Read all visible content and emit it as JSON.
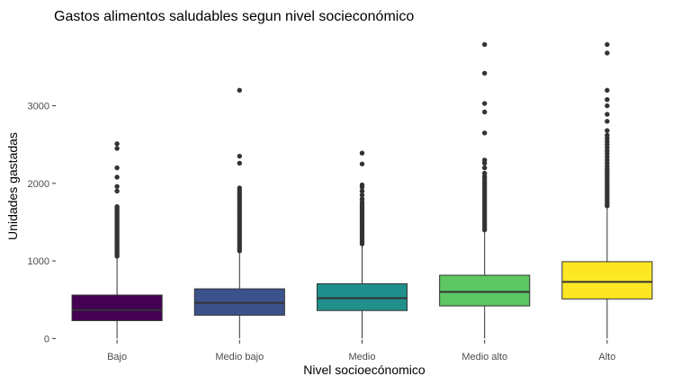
{
  "chart_data": {
    "type": "boxplot",
    "title": "Gastos alimentos saludables segun nivel socieconómico",
    "xlabel": "Nivel socioecónomico",
    "ylabel": "Unidades gastadas",
    "ylim": [
      -20,
      3900
    ],
    "yticks": [
      0,
      1000,
      2000,
      3000
    ],
    "ytick_labels": [
      "0",
      "1000",
      "2000",
      "3000"
    ],
    "grid": false,
    "legend": "none",
    "categories": [
      "Bajo",
      "Medio bajo",
      "Medio",
      "Medio alto",
      "Alto"
    ],
    "series": [
      {
        "category": "Bajo",
        "color": "#440154",
        "min": 0,
        "q1": 230,
        "median": 365,
        "q3": 560,
        "max": 1050,
        "outliers": [
          1060,
          1080,
          1100,
          1120,
          1140,
          1160,
          1180,
          1200,
          1220,
          1240,
          1260,
          1280,
          1300,
          1320,
          1340,
          1360,
          1380,
          1400,
          1420,
          1440,
          1460,
          1480,
          1500,
          1520,
          1540,
          1560,
          1580,
          1600,
          1620,
          1640,
          1660,
          1680,
          1700,
          1900,
          1960,
          2080,
          2200,
          2450,
          2510
        ]
      },
      {
        "category": "Medio bajo",
        "color": "#3b528b",
        "min": 0,
        "q1": 300,
        "median": 460,
        "q3": 640,
        "max": 1120,
        "outliers": [
          1130,
          1160,
          1190,
          1220,
          1250,
          1280,
          1310,
          1340,
          1370,
          1400,
          1430,
          1460,
          1490,
          1520,
          1550,
          1580,
          1610,
          1640,
          1670,
          1700,
          1730,
          1760,
          1790,
          1820,
          1850,
          1880,
          1910,
          1940,
          2260,
          2350,
          3200
        ]
      },
      {
        "category": "Medio",
        "color": "#21908c",
        "min": 0,
        "q1": 360,
        "median": 520,
        "q3": 705,
        "max": 1210,
        "outliers": [
          1220,
          1250,
          1280,
          1310,
          1340,
          1370,
          1400,
          1430,
          1460,
          1490,
          1520,
          1550,
          1580,
          1610,
          1640,
          1670,
          1700,
          1730,
          1760,
          1800,
          1850,
          1900,
          1950,
          1980,
          2250,
          2390
        ]
      },
      {
        "category": "Medio alto",
        "color": "#5dc863",
        "min": 0,
        "q1": 420,
        "median": 600,
        "q3": 815,
        "max": 1390,
        "outliers": [
          1400,
          1430,
          1460,
          1490,
          1520,
          1550,
          1580,
          1610,
          1640,
          1670,
          1700,
          1730,
          1760,
          1790,
          1820,
          1850,
          1880,
          1910,
          1940,
          1970,
          2000,
          2030,
          2060,
          2090,
          2130,
          2200,
          2260,
          2300,
          2650,
          2920,
          3030,
          3420,
          3790
        ]
      },
      {
        "category": "Alto",
        "color": "#fde725",
        "min": 0,
        "q1": 510,
        "median": 730,
        "q3": 990,
        "max": 1700,
        "outliers": [
          1710,
          1740,
          1770,
          1800,
          1830,
          1860,
          1890,
          1920,
          1950,
          1980,
          2010,
          2040,
          2070,
          2100,
          2130,
          2160,
          2190,
          2220,
          2260,
          2300,
          2340,
          2380,
          2420,
          2460,
          2500,
          2540,
          2580,
          2620,
          2680,
          2800,
          2890,
          3000,
          3080,
          3200,
          3680,
          3790
        ]
      }
    ]
  }
}
